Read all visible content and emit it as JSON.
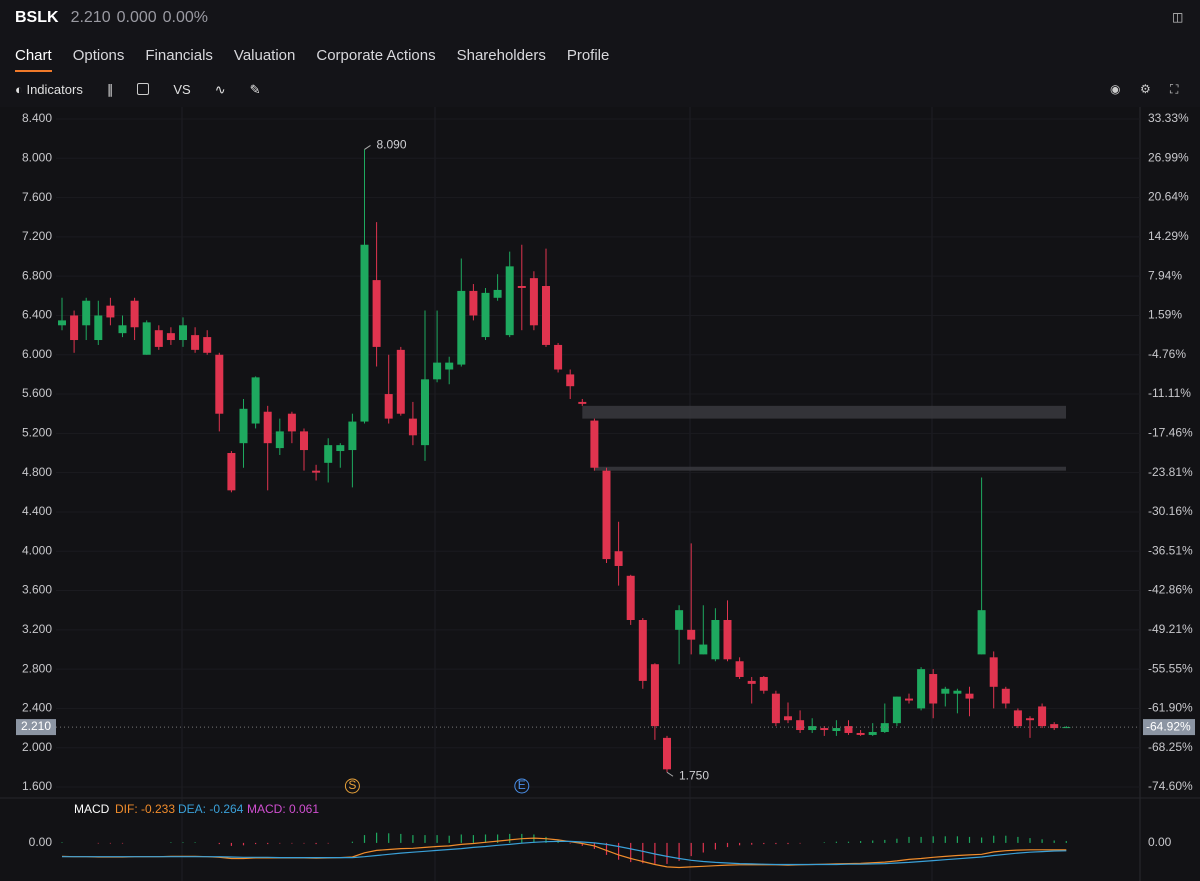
{
  "header": {
    "symbol": "BSLK",
    "price": "2.210",
    "change": "0.000",
    "change_pct": "0.00%"
  },
  "tabs": [
    "Chart",
    "Options",
    "Financials",
    "Valuation",
    "Corporate Actions",
    "Shareholders",
    "Profile"
  ],
  "toolbar": {
    "indicators": "Indicators",
    "compare": "VS"
  },
  "events": [
    "S",
    "E"
  ],
  "chart_data": [
    {
      "type": "candlestick",
      "up_color": "#1ea95f",
      "down_color": "#e0344f",
      "grid": true,
      "ylim": [
        1.6,
        8.4
      ],
      "yticks": [
        {
          "value": 8.4,
          "label": "8.400"
        },
        {
          "value": 8.0,
          "label": "8.000"
        },
        {
          "value": 7.6,
          "label": "7.600"
        },
        {
          "value": 7.2,
          "label": "7.200"
        },
        {
          "value": 6.8,
          "label": "6.800"
        },
        {
          "value": 6.4,
          "label": "6.400"
        },
        {
          "value": 6.0,
          "label": "6.000"
        },
        {
          "value": 5.6,
          "label": "5.600"
        },
        {
          "value": 5.2,
          "label": "5.200"
        },
        {
          "value": 4.8,
          "label": "4.800"
        },
        {
          "value": 4.4,
          "label": "4.400"
        },
        {
          "value": 4.0,
          "label": "4.000"
        },
        {
          "value": 3.6,
          "label": "3.600"
        },
        {
          "value": 3.2,
          "label": "3.200"
        },
        {
          "value": 2.8,
          "label": "2.800"
        },
        {
          "value": 2.4,
          "label": "2.400"
        },
        {
          "value": 2.0,
          "label": "2.000"
        },
        {
          "value": 1.6,
          "label": "1.600"
        }
      ],
      "y2lim": [
        -74.6,
        33.33
      ],
      "y2ticks": [
        {
          "value": 33.33,
          "label": "33.33%"
        },
        {
          "value": 26.99,
          "label": "26.99%"
        },
        {
          "value": 20.64,
          "label": "20.64%"
        },
        {
          "value": 14.29,
          "label": "14.29%"
        },
        {
          "value": 7.94,
          "label": "7.94%"
        },
        {
          "value": 1.59,
          "label": "1.59%"
        },
        {
          "value": -4.76,
          "label": "-4.76%"
        },
        {
          "value": -11.11,
          "label": "-11.11%"
        },
        {
          "value": -17.46,
          "label": "-17.46%"
        },
        {
          "value": -23.81,
          "label": "-23.81%"
        },
        {
          "value": -30.16,
          "label": "-30.16%"
        },
        {
          "value": -36.51,
          "label": "-36.51%"
        },
        {
          "value": -42.86,
          "label": "-42.86%"
        },
        {
          "value": -49.21,
          "label": "-49.21%"
        },
        {
          "value": -55.55,
          "label": "-55.55%"
        },
        {
          "value": -61.9,
          "label": "-61.90%"
        },
        {
          "value": -68.25,
          "label": "-68.25%"
        },
        {
          "value": -74.6,
          "label": "-74.60%"
        }
      ],
      "open": [
        6.3,
        6.4,
        6.3,
        6.15,
        6.5,
        6.22,
        6.55,
        6.0,
        6.25,
        6.22,
        6.15,
        6.2,
        6.18,
        6.0,
        5.0,
        5.1,
        5.3,
        5.42,
        5.05,
        5.4,
        5.22,
        4.82,
        4.9,
        5.02,
        5.03,
        5.32,
        6.76,
        5.6,
        6.05,
        5.35,
        5.08,
        5.75,
        5.85,
        5.9,
        6.65,
        6.18,
        6.58,
        6.2,
        6.7,
        6.78,
        6.7,
        6.1,
        5.8,
        5.52,
        5.33,
        4.82,
        4.0,
        3.75,
        3.3,
        2.85,
        2.1,
        3.2,
        3.2,
        2.95,
        2.9,
        3.3,
        2.88,
        2.68,
        2.72,
        2.55,
        2.32,
        2.28,
        2.18,
        2.2,
        2.17,
        2.22,
        2.15,
        2.13,
        2.16,
        2.25,
        2.5,
        2.4,
        2.75,
        2.55,
        2.55,
        2.55,
        2.95,
        2.92,
        2.6,
        2.38,
        2.3,
        2.42,
        2.24,
        2.21
      ],
      "high": [
        6.58,
        6.45,
        6.58,
        6.55,
        6.58,
        6.4,
        6.58,
        6.35,
        6.3,
        6.28,
        6.38,
        6.28,
        6.25,
        6.02,
        5.02,
        5.55,
        5.78,
        5.48,
        5.35,
        5.42,
        5.25,
        4.88,
        5.15,
        5.1,
        5.4,
        8.09,
        7.35,
        6.0,
        6.08,
        5.52,
        6.45,
        6.45,
        5.98,
        6.98,
        6.72,
        6.68,
        6.82,
        7.05,
        7.12,
        6.85,
        7.08,
        6.12,
        5.85,
        5.55,
        5.35,
        4.85,
        4.3,
        3.76,
        3.32,
        2.86,
        2.12,
        3.45,
        4.08,
        3.45,
        3.42,
        3.5,
        2.92,
        2.72,
        2.73,
        2.58,
        2.46,
        2.38,
        2.3,
        2.22,
        2.28,
        2.28,
        2.18,
        2.25,
        2.45,
        2.52,
        2.55,
        2.82,
        2.8,
        2.62,
        2.6,
        2.62,
        4.75,
        2.98,
        2.62,
        2.4,
        2.32,
        2.45,
        2.26,
        2.22
      ],
      "low": [
        6.25,
        6.02,
        6.15,
        6.1,
        6.3,
        6.18,
        6.15,
        6.0,
        6.05,
        6.1,
        6.08,
        6.02,
        6.0,
        5.22,
        4.6,
        4.85,
        5.25,
        4.62,
        4.98,
        5.1,
        4.82,
        4.72,
        4.7,
        4.85,
        4.65,
        5.3,
        5.88,
        5.3,
        5.38,
        5.08,
        4.92,
        5.72,
        5.7,
        5.88,
        6.35,
        6.15,
        6.55,
        6.18,
        6.25,
        6.25,
        6.08,
        5.82,
        5.55,
        5.48,
        4.82,
        3.88,
        3.65,
        3.25,
        2.6,
        2.08,
        1.75,
        2.85,
        2.95,
        2.95,
        2.88,
        2.88,
        2.7,
        2.45,
        2.55,
        2.22,
        2.25,
        2.15,
        2.15,
        2.12,
        2.12,
        2.13,
        2.12,
        2.12,
        2.15,
        2.22,
        2.45,
        2.38,
        2.3,
        2.42,
        2.35,
        2.32,
        2.95,
        2.4,
        2.4,
        2.2,
        2.1,
        2.2,
        2.18,
        2.2
      ],
      "close": [
        6.35,
        6.15,
        6.55,
        6.4,
        6.38,
        6.3,
        6.28,
        6.33,
        6.08,
        6.15,
        6.3,
        6.05,
        6.02,
        5.4,
        4.62,
        5.45,
        5.77,
        5.1,
        5.22,
        5.22,
        5.03,
        4.8,
        5.08,
        5.08,
        5.32,
        7.12,
        6.08,
        5.35,
        5.4,
        5.18,
        5.75,
        5.92,
        5.92,
        6.65,
        6.4,
        6.63,
        6.66,
        6.9,
        6.68,
        6.3,
        6.1,
        5.85,
        5.68,
        5.5,
        4.85,
        3.92,
        3.85,
        3.3,
        2.68,
        2.22,
        1.78,
        3.4,
        3.1,
        3.05,
        3.3,
        2.9,
        2.72,
        2.65,
        2.58,
        2.25,
        2.28,
        2.18,
        2.22,
        2.18,
        2.2,
        2.15,
        2.13,
        2.16,
        2.25,
        2.52,
        2.48,
        2.8,
        2.45,
        2.6,
        2.58,
        2.5,
        3.4,
        2.62,
        2.45,
        2.22,
        2.28,
        2.22,
        2.2,
        2.21
      ],
      "gaps": [
        {
          "low": 5.35,
          "high": 5.48
        },
        {
          "low": 4.82,
          "high": 4.86
        }
      ],
      "annotations": [
        {
          "value": 8.09,
          "label": "8.090"
        },
        {
          "value": 1.75,
          "label": "1.750"
        }
      ],
      "last": {
        "value": 2.21,
        "label": "2.210",
        "pct_value": -64.92,
        "pct_label": "-64.92%"
      }
    },
    {
      "type": "macd",
      "title": "MACD",
      "ylim": [
        -1.17,
        1.43
      ],
      "yticks": [
        {
          "value": 0,
          "label": "0.00"
        }
      ],
      "legend": [
        "DIF: -0.233",
        "DEA: -0.264",
        "MACD: 0.061"
      ],
      "series": [
        {
          "name": "DIF",
          "color": "#f08c2c",
          "values": [
            -0.45,
            -0.46,
            -0.46,
            -0.47,
            -0.47,
            -0.47,
            -0.46,
            -0.46,
            -0.46,
            -0.45,
            -0.45,
            -0.45,
            -0.46,
            -0.48,
            -0.52,
            -0.52,
            -0.5,
            -0.5,
            -0.5,
            -0.5,
            -0.5,
            -0.51,
            -0.5,
            -0.49,
            -0.47,
            -0.33,
            -0.25,
            -0.22,
            -0.19,
            -0.18,
            -0.15,
            -0.12,
            -0.1,
            -0.05,
            -0.02,
            0.02,
            0.06,
            0.1,
            0.14,
            0.16,
            0.14,
            0.1,
            0.04,
            -0.02,
            -0.1,
            -0.25,
            -0.4,
            -0.52,
            -0.62,
            -0.72,
            -0.8,
            -0.82,
            -0.8,
            -0.78,
            -0.76,
            -0.74,
            -0.73,
            -0.73,
            -0.73,
            -0.73,
            -0.74,
            -0.73,
            -0.72,
            -0.71,
            -0.7,
            -0.69,
            -0.68,
            -0.66,
            -0.64,
            -0.6,
            -0.55,
            -0.52,
            -0.48,
            -0.45,
            -0.42,
            -0.4,
            -0.38,
            -0.3,
            -0.26,
            -0.24,
            -0.23,
            -0.23,
            -0.23,
            -0.233
          ]
        },
        {
          "name": "DEA",
          "color": "#3aa0d8",
          "values": [
            -0.46,
            -0.46,
            -0.46,
            -0.46,
            -0.46,
            -0.46,
            -0.46,
            -0.46,
            -0.46,
            -0.46,
            -0.46,
            -0.46,
            -0.46,
            -0.46,
            -0.47,
            -0.48,
            -0.48,
            -0.48,
            -0.49,
            -0.49,
            -0.49,
            -0.49,
            -0.49,
            -0.49,
            -0.49,
            -0.46,
            -0.42,
            -0.38,
            -0.34,
            -0.31,
            -0.28,
            -0.25,
            -0.22,
            -0.19,
            -0.15,
            -0.12,
            -0.08,
            -0.05,
            -0.01,
            0.02,
            0.04,
            0.05,
            0.05,
            0.03,
            0.0,
            -0.05,
            -0.12,
            -0.2,
            -0.28,
            -0.37,
            -0.45,
            -0.52,
            -0.58,
            -0.62,
            -0.65,
            -0.67,
            -0.69,
            -0.7,
            -0.71,
            -0.72,
            -0.72,
            -0.72,
            -0.72,
            -0.72,
            -0.72,
            -0.71,
            -0.71,
            -0.7,
            -0.69,
            -0.67,
            -0.65,
            -0.62,
            -0.59,
            -0.56,
            -0.53,
            -0.5,
            -0.47,
            -0.42,
            -0.38,
            -0.34,
            -0.31,
            -0.29,
            -0.27,
            -0.264
          ]
        },
        {
          "name": "MACD",
          "color": "#d04fd0",
          "up_color": "#1ea95f",
          "down_color": "#e0344f",
          "values": [
            0.02,
            0.0,
            0.0,
            -0.02,
            -0.02,
            -0.02,
            0.0,
            0.0,
            0.0,
            0.02,
            0.02,
            0.02,
            0.0,
            -0.04,
            -0.1,
            -0.08,
            -0.04,
            -0.04,
            -0.02,
            -0.02,
            -0.02,
            -0.04,
            -0.02,
            0.0,
            0.04,
            0.26,
            0.34,
            0.32,
            0.3,
            0.26,
            0.26,
            0.26,
            0.24,
            0.28,
            0.26,
            0.28,
            0.28,
            0.3,
            0.3,
            0.28,
            0.2,
            0.1,
            -0.02,
            -0.1,
            -0.2,
            -0.4,
            -0.56,
            -0.64,
            -0.68,
            -0.7,
            -0.7,
            -0.6,
            -0.44,
            -0.32,
            -0.22,
            -0.14,
            -0.08,
            -0.06,
            -0.04,
            -0.04,
            -0.04,
            -0.02,
            0.0,
            0.02,
            0.04,
            0.04,
            0.06,
            0.08,
            0.1,
            0.14,
            0.2,
            0.2,
            0.22,
            0.22,
            0.22,
            0.2,
            0.18,
            0.24,
            0.24,
            0.2,
            0.16,
            0.12,
            0.08,
            0.061
          ]
        }
      ]
    }
  ]
}
